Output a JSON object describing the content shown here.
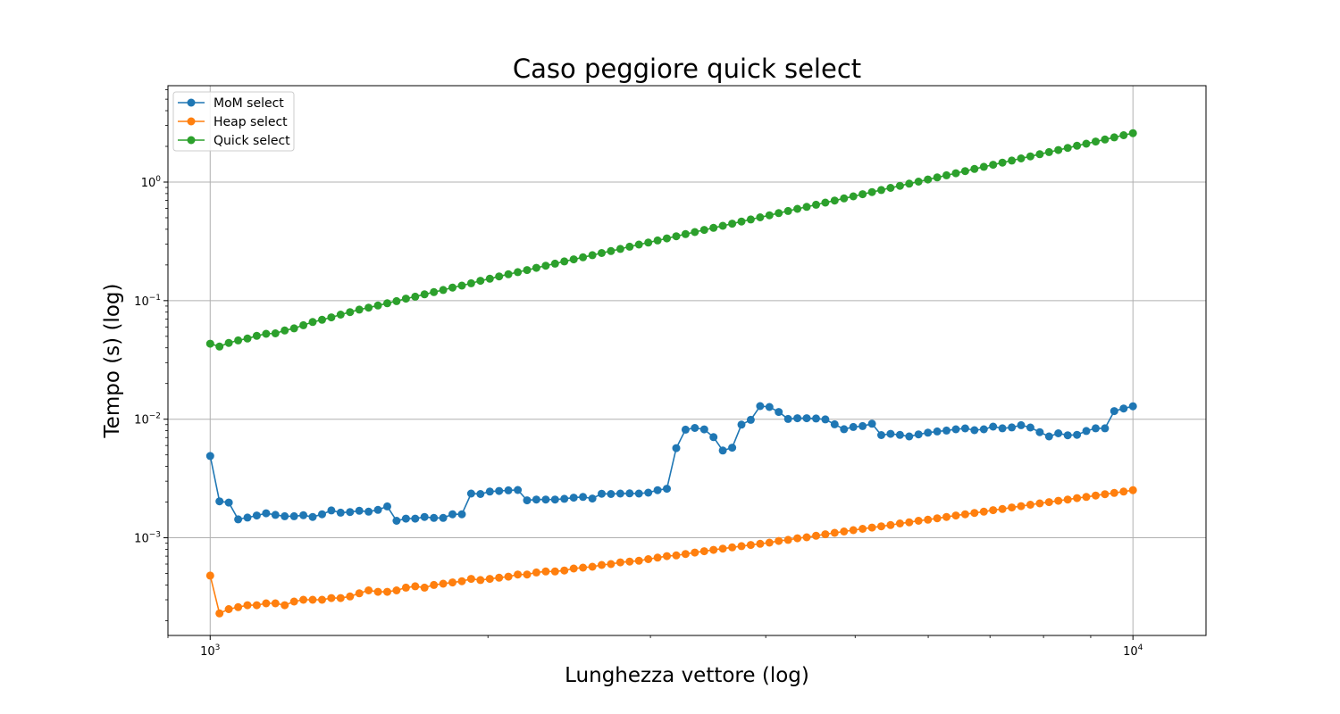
{
  "chart_data": {
    "type": "line",
    "title": "Caso peggiore quick select",
    "xlabel": "Lunghezza vettore (log)",
    "ylabel": "Tempo (s) (log)",
    "xscale": "log",
    "yscale": "log",
    "xlim": [
      900,
      12000
    ],
    "ylim": [
      0.00015,
      6.5
    ],
    "grid": true,
    "legend_position": "top-left",
    "x_ticks": [
      {
        "base": "10",
        "exp": "3",
        "value": 1000
      },
      {
        "base": "10",
        "exp": "4",
        "value": 10000
      }
    ],
    "y_ticks": [
      {
        "base": "10",
        "exp": "0",
        "value": 1
      },
      {
        "base": "10",
        "exp": "−1",
        "value": 0.1
      },
      {
        "base": "10",
        "exp": "−2",
        "value": 0.01
      },
      {
        "base": "10",
        "exp": "−3",
        "value": 0.001
      }
    ],
    "x": {
      "start": 1000,
      "end": 10000,
      "count": 100
    },
    "series": [
      {
        "name": "MoM select",
        "color": "#1f77b4",
        "values": [
          0.0049,
          0.00203,
          0.00198,
          0.00143,
          0.00148,
          0.00154,
          0.00161,
          0.00156,
          0.00152,
          0.00152,
          0.00155,
          0.0015,
          0.00158,
          0.0017,
          0.00163,
          0.00165,
          0.00169,
          0.00166,
          0.00172,
          0.00184,
          0.00139,
          0.00145,
          0.00145,
          0.0015,
          0.00147,
          0.00147,
          0.00158,
          0.00158,
          0.00236,
          0.00234,
          0.00245,
          0.00248,
          0.00251,
          0.00253,
          0.00207,
          0.0021,
          0.0021,
          0.0021,
          0.00213,
          0.00218,
          0.00221,
          0.00214,
          0.00235,
          0.00234,
          0.00236,
          0.00237,
          0.00236,
          0.0024,
          0.00252,
          0.00259,
          0.0057,
          0.00816,
          0.00843,
          0.0082,
          0.00706,
          0.00544,
          0.00575,
          0.009,
          0.00987,
          0.0129,
          0.01267,
          0.0115,
          0.01005,
          0.01019,
          0.01019,
          0.01014,
          0.00996,
          0.00906,
          0.00823,
          0.0086,
          0.00875,
          0.00916,
          0.00735,
          0.00752,
          0.00737,
          0.00715,
          0.00745,
          0.0077,
          0.00789,
          0.00802,
          0.00822,
          0.00837,
          0.00808,
          0.00822,
          0.00866,
          0.00838,
          0.00852,
          0.00891,
          0.00851,
          0.00778,
          0.00715,
          0.0076,
          0.00732,
          0.00738,
          0.00796,
          0.00838,
          0.00838,
          0.01171,
          0.01232,
          0.01285
        ]
      },
      {
        "name": "Heap select",
        "color": "#ff7f0e",
        "values": [
          0.00048,
          0.00023,
          0.00025,
          0.00026,
          0.00027,
          0.00027,
          0.00028,
          0.00028,
          0.00027,
          0.00029,
          0.0003,
          0.0003,
          0.0003,
          0.00031,
          0.00031,
          0.00032,
          0.00034,
          0.00036,
          0.00035,
          0.00035,
          0.00036,
          0.00038,
          0.00039,
          0.00038,
          0.0004,
          0.00041,
          0.00042,
          0.00043,
          0.00045,
          0.00044,
          0.00045,
          0.00046,
          0.00047,
          0.00049,
          0.00049,
          0.00051,
          0.00052,
          0.00052,
          0.00053,
          0.00055,
          0.00056,
          0.00057,
          0.00059,
          0.0006,
          0.00062,
          0.00063,
          0.00064,
          0.00066,
          0.00068,
          0.0007,
          0.00071,
          0.00073,
          0.00075,
          0.00077,
          0.00079,
          0.00081,
          0.00083,
          0.00085,
          0.00087,
          0.00089,
          0.00091,
          0.00094,
          0.00096,
          0.00099,
          0.00101,
          0.00104,
          0.00107,
          0.0011,
          0.00113,
          0.00116,
          0.00119,
          0.00122,
          0.00125,
          0.00128,
          0.00132,
          0.00135,
          0.00139,
          0.00142,
          0.00146,
          0.0015,
          0.00154,
          0.00158,
          0.00162,
          0.00166,
          0.00171,
          0.00175,
          0.0018,
          0.00185,
          0.0019,
          0.00195,
          0.002,
          0.00205,
          0.0021,
          0.00216,
          0.00221,
          0.00227,
          0.00233,
          0.00239,
          0.00245,
          0.00252
        ]
      },
      {
        "name": "Quick select",
        "color": "#2ca02c",
        "values": [
          0.0433,
          0.041,
          0.044,
          0.0462,
          0.0479,
          0.0505,
          0.0525,
          0.053,
          0.056,
          0.0584,
          0.062,
          0.066,
          0.069,
          0.0723,
          0.0762,
          0.08,
          0.084,
          0.0872,
          0.091,
          0.095,
          0.099,
          0.104,
          0.108,
          0.113,
          0.118,
          0.123,
          0.129,
          0.134,
          0.14,
          0.147,
          0.153,
          0.16,
          0.167,
          0.174,
          0.181,
          0.189,
          0.197,
          0.205,
          0.214,
          0.223,
          0.232,
          0.242,
          0.252,
          0.262,
          0.273,
          0.285,
          0.297,
          0.309,
          0.322,
          0.335,
          0.349,
          0.364,
          0.379,
          0.395,
          0.411,
          0.428,
          0.446,
          0.465,
          0.484,
          0.504,
          0.525,
          0.547,
          0.57,
          0.594,
          0.618,
          0.644,
          0.671,
          0.699,
          0.728,
          0.758,
          0.79,
          0.823,
          0.857,
          0.893,
          0.93,
          0.969,
          1.009,
          1.051,
          1.095,
          1.141,
          1.188,
          1.238,
          1.29,
          1.344,
          1.4,
          1.458,
          1.519,
          1.582,
          1.648,
          1.717,
          1.789,
          1.864,
          1.942,
          2.023,
          2.107,
          2.195,
          2.287,
          2.383,
          2.482,
          2.586
        ]
      }
    ]
  }
}
